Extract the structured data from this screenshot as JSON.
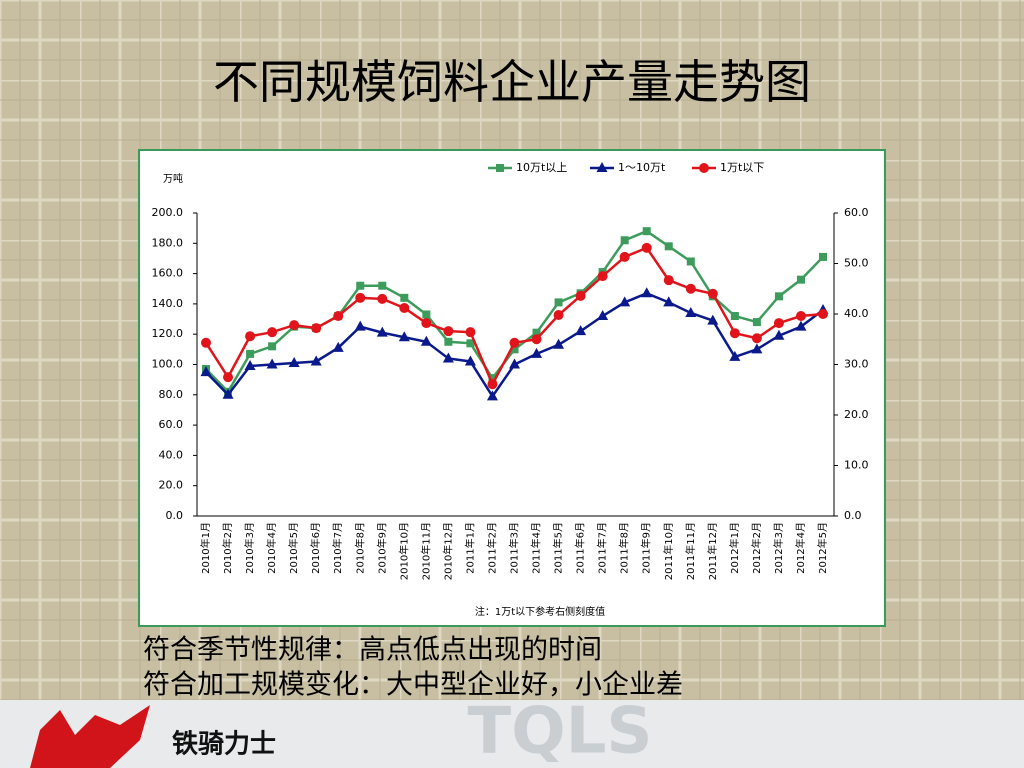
{
  "slide": {
    "title": "不同规模饲料企业产量走势图",
    "notes": [
      "符合季节性规律：高点低点出现的时间",
      "符合加工规模变化：大中型企业好，小企业差"
    ],
    "logo": "铁骑力士",
    "watermark": "TQLS"
  },
  "chart_data": {
    "type": "line",
    "y_unit": "万吨",
    "footnote": "注：1万t以下参考右侧刻度值",
    "categories": [
      "2010年1月",
      "2010年2月",
      "2010年3月",
      "2010年4月",
      "2010年5月",
      "2010年6月",
      "2010年7月",
      "2010年8月",
      "2010年9月",
      "2010年10月",
      "2010年11月",
      "2010年12月",
      "2011年1月",
      "2011年2月",
      "2011年3月",
      "2011年4月",
      "2011年5月",
      "2011年6月",
      "2011年7月",
      "2011年8月",
      "2011年9月",
      "2011年10月",
      "2011年11月",
      "2011年12月",
      "2012年1月",
      "2012年2月",
      "2012年3月",
      "2012年4月",
      "2012年5月"
    ],
    "series": [
      {
        "name": "10万t以上",
        "color": "#3d9c5c",
        "marker": "square",
        "values": [
          97,
          82,
          107,
          112,
          125,
          124,
          132,
          152,
          152,
          144,
          133,
          115,
          114,
          91,
          110,
          121,
          141,
          147,
          161,
          182,
          188,
          178,
          168,
          145,
          132,
          128,
          145,
          156,
          171
        ]
      },
      {
        "name": "1～10万t",
        "color": "#0a1a8c",
        "marker": "triangle",
        "values": [
          95,
          80,
          99,
          100,
          101,
          102,
          111,
          125,
          121,
          118,
          115,
          104,
          102,
          79,
          100,
          107,
          113,
          122,
          132,
          141,
          147,
          141,
          134,
          129,
          105,
          110,
          119,
          125,
          136
        ]
      },
      {
        "name": "1万t以下",
        "color": "#e0141a",
        "marker": "circle",
        "axis": "y2",
        "values": [
          34.3,
          27.5,
          35.6,
          36.4,
          37.8,
          37.2,
          39.6,
          43.2,
          43.0,
          41.2,
          38.2,
          36.6,
          36.4,
          26.1,
          34.3,
          35.0,
          39.8,
          43.6,
          47.5,
          51.3,
          53.1,
          46.7,
          45.0,
          44.0,
          36.2,
          35.2,
          38.2,
          39.6,
          40.0
        ]
      }
    ],
    "ylim": [
      0,
      200
    ],
    "yticks": [
      {
        "value": 0,
        "label": "0.0"
      },
      {
        "value": 20,
        "label": "20.0"
      },
      {
        "value": 40,
        "label": "40.0"
      },
      {
        "value": 60,
        "label": "60.0"
      },
      {
        "value": 80,
        "label": "80.0"
      },
      {
        "value": 100,
        "label": "100.0"
      },
      {
        "value": 120,
        "label": "120.0"
      },
      {
        "value": 140,
        "label": "140.0"
      },
      {
        "value": 160,
        "label": "160.0"
      },
      {
        "value": 180,
        "label": "180.0"
      },
      {
        "value": 200,
        "label": "200.0"
      }
    ],
    "y2lim": [
      0,
      60
    ],
    "y2ticks": [
      {
        "value": 0,
        "label": "0.0"
      },
      {
        "value": 10,
        "label": "10.0"
      },
      {
        "value": 20,
        "label": "20.0"
      },
      {
        "value": 30,
        "label": "30.0"
      },
      {
        "value": 40,
        "label": "40.0"
      },
      {
        "value": 50,
        "label": "50.0"
      },
      {
        "value": 60,
        "label": "60.0"
      }
    ],
    "legend": "top"
  }
}
